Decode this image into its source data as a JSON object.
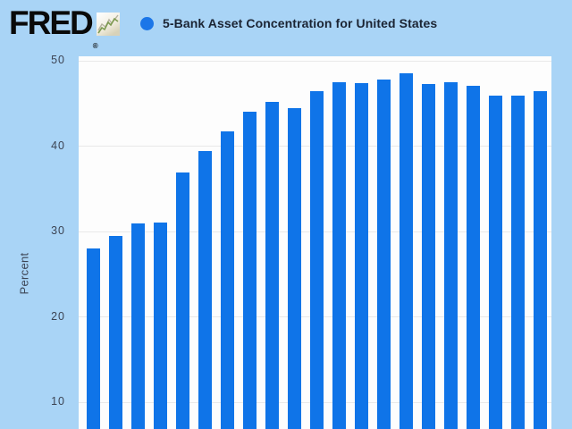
{
  "header": {
    "logo_text": "FRED",
    "registered_mark": "®"
  },
  "legend": {
    "series_label": "5-Bank Asset Concentration for United States",
    "marker_color": "#1b76e8"
  },
  "y_axis": {
    "title": "Percent",
    "ticks": [
      50,
      40,
      30,
      20,
      10
    ]
  },
  "colors": {
    "page_background": "#a9d4f6",
    "plot_background": "#fdfdfd",
    "bar": "#0f74e8",
    "gridline": "#e9e9e9",
    "tick_text": "#3c4454",
    "legend_text": "#1b2433",
    "logo_text": "#0a0a0a"
  },
  "chart_data": {
    "type": "bar",
    "title": "5-Bank Asset Concentration for United States",
    "xlabel": "",
    "ylabel": "Percent",
    "y_ticks": [
      50,
      40,
      30,
      20,
      10
    ],
    "y_max_visible": 50,
    "grid": "horizontal",
    "legend_position": "top",
    "x_axis_labels_visible": false,
    "bottom_edge_cropped": true,
    "bar_color": "#0f74e8",
    "values": [
      28.0,
      29.4,
      30.9,
      31.0,
      36.9,
      39.4,
      41.7,
      44.0,
      45.1,
      44.4,
      46.4,
      47.4,
      47.3,
      47.8,
      48.5,
      47.2,
      47.4,
      47.0,
      45.9,
      45.9,
      46.4
    ]
  }
}
